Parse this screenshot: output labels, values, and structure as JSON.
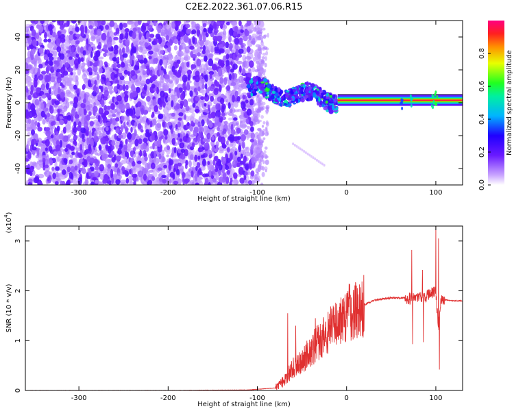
{
  "title": "C2E2.2022.361.07.06.R15",
  "chart_data": [
    {
      "type": "heatmap",
      "name": "spectrogram",
      "xlabel": "Height of straight line (km)",
      "ylabel": "Frequency (Hz)",
      "xlim": [
        -360,
        130
      ],
      "ylim": [
        -50,
        50
      ],
      "xticks": [
        -300,
        -200,
        -100,
        0,
        100
      ],
      "yticks": [
        -40,
        -20,
        0,
        20,
        40
      ],
      "colorbar": {
        "label": "Normalized spectral amplitude",
        "range": [
          0,
          1
        ],
        "ticks": [
          0.0,
          0.2,
          0.4,
          0.6,
          0.8
        ],
        "colors": [
          "#ffffff",
          "#b070ff",
          "#4000ff",
          "#00c0ff",
          "#00ff60",
          "#ffff00",
          "#ff4000",
          "#ff0080"
        ]
      },
      "features": {
        "noise_region_x": [
          -360,
          -100
        ],
        "transition_region_x": [
          -110,
          -10
        ],
        "carrier_line": {
          "x": [
            -10,
            130
          ],
          "frequency": 1.5,
          "amplitude": 0.95
        },
        "faint_streak": {
          "x": [
            -60,
            -25
          ],
          "frequency": [
            -25,
            -38
          ]
        }
      }
    },
    {
      "type": "line",
      "name": "snr",
      "xlabel": "Height of straight line (km)",
      "ylabel": "SNR (10 * v/v)",
      "y_scale_label": "(x10",
      "y_scale_exponent": "4",
      "y_scale": 10000,
      "xlim": [
        -360,
        130
      ],
      "ylim": [
        0,
        3.3
      ],
      "xticks": [
        -300,
        -200,
        -100,
        0,
        100
      ],
      "yticks": [
        0,
        1,
        2,
        3
      ],
      "color": "#e03030",
      "series": [
        {
          "name": "SNR",
          "x": [
            -360,
            -300,
            -200,
            -110,
            -80,
            -70,
            -60,
            -50,
            -40,
            -30,
            -20,
            -10,
            0,
            10,
            20,
            30,
            40,
            50,
            60,
            70,
            80,
            90,
            95,
            100,
            103,
            106,
            110,
            120,
            130
          ],
          "y": [
            0.0,
            0.0,
            0.0,
            0.01,
            0.05,
            0.2,
            0.45,
            0.6,
            0.8,
            1.0,
            1.2,
            1.35,
            1.55,
            1.65,
            1.72,
            1.8,
            1.84,
            1.86,
            1.86,
            1.85,
            1.87,
            1.9,
            1.95,
            2.0,
            1.2,
            1.85,
            1.82,
            1.8,
            1.8
          ],
          "spikes": [
            {
              "x": -66,
              "y": 1.55
            },
            {
              "x": -57,
              "y": 1.3
            },
            {
              "x": -35,
              "y": 1.45
            },
            {
              "x": -15,
              "y": 1.7
            },
            {
              "x": -8,
              "y": 1.68
            },
            {
              "x": 73,
              "y": 2.82
            },
            {
              "x": 74,
              "y": 0.93
            },
            {
              "x": 85,
              "y": 2.42
            },
            {
              "x": 86,
              "y": 0.97
            },
            {
              "x": 100,
              "y": 3.3
            },
            {
              "x": 103,
              "y": 3.05
            },
            {
              "x": 104,
              "y": 0.42
            }
          ]
        }
      ]
    }
  ]
}
